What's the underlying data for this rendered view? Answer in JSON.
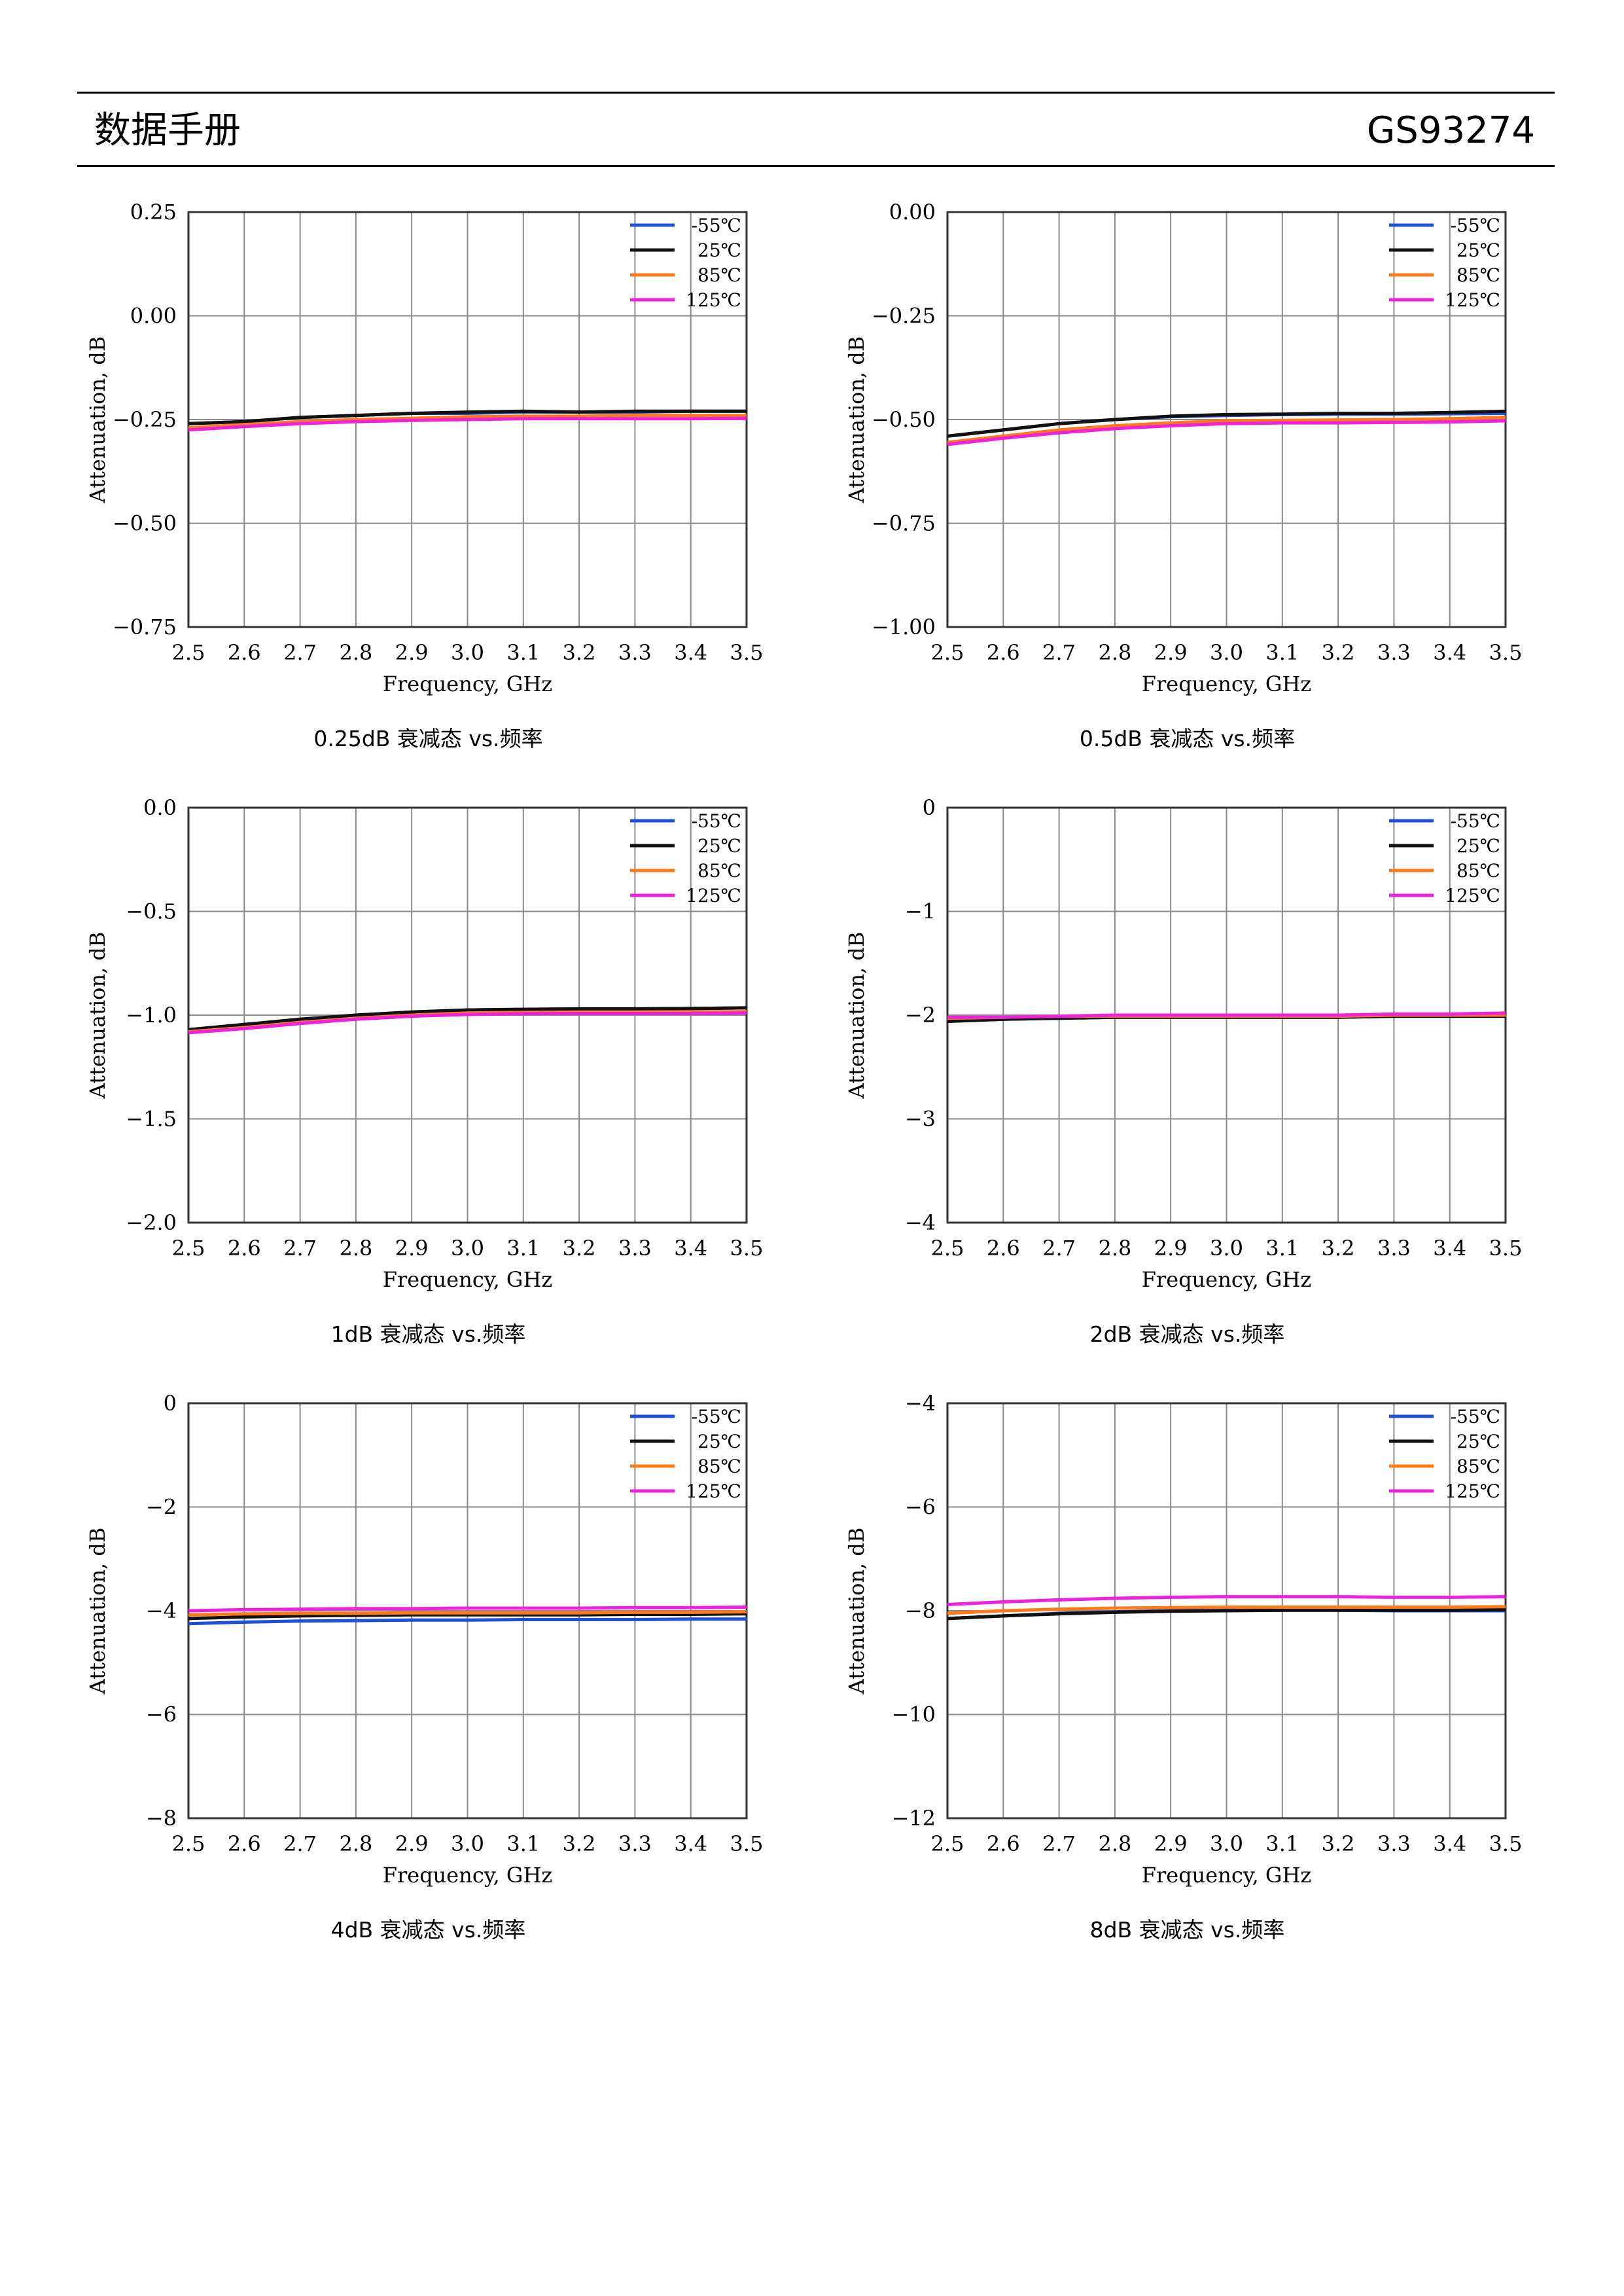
{
  "header": {
    "title": "数据手册",
    "part_number": "GS93274"
  },
  "colors": {
    "-55℃": "#1f4fd6",
    "25℃": "#111111",
    "85℃": "#ff7a1a",
    "125℃": "#ee22dd"
  },
  "chart_data": [
    {
      "type": "line",
      "caption": "0.25dB 衰减态 vs.频率",
      "xlabel": "Frequency, GHz",
      "ylabel": "Attenuation, dB",
      "xlim": [
        2.5,
        3.5
      ],
      "ylim": [
        -0.75,
        0.25
      ],
      "yticks": [
        "0.25",
        "0.00",
        "−0.25",
        "−0.50",
        "−0.75"
      ],
      "ytick_values": [
        0.25,
        0.0,
        -0.25,
        -0.5,
        -0.75
      ],
      "xticks": [
        "2.5",
        "2.6",
        "2.7",
        "2.8",
        "2.9",
        "3.0",
        "3.1",
        "3.2",
        "3.3",
        "3.4",
        "3.5"
      ],
      "legend": "top-right",
      "x": [
        2.5,
        2.6,
        2.7,
        2.8,
        2.9,
        3.0,
        3.1,
        3.2,
        3.3,
        3.4,
        3.5
      ],
      "series": [
        {
          "name": "-55℃",
          "values": [
            -0.26,
            -0.255,
            -0.245,
            -0.24,
            -0.235,
            -0.235,
            -0.232,
            -0.232,
            -0.232,
            -0.23,
            -0.23
          ]
        },
        {
          "name": "25℃",
          "values": [
            -0.26,
            -0.255,
            -0.245,
            -0.24,
            -0.235,
            -0.232,
            -0.23,
            -0.232,
            -0.23,
            -0.23,
            -0.23
          ]
        },
        {
          "name": "85℃",
          "values": [
            -0.27,
            -0.262,
            -0.255,
            -0.25,
            -0.247,
            -0.243,
            -0.242,
            -0.242,
            -0.24,
            -0.24,
            -0.24
          ]
        },
        {
          "name": "125℃",
          "values": [
            -0.275,
            -0.267,
            -0.26,
            -0.255,
            -0.252,
            -0.25,
            -0.248,
            -0.248,
            -0.248,
            -0.248,
            -0.247
          ]
        }
      ]
    },
    {
      "type": "line",
      "caption": "0.5dB 衰减态 vs.频率",
      "xlabel": "Frequency, GHz",
      "ylabel": "Attenuation, dB",
      "xlim": [
        2.5,
        3.5
      ],
      "ylim": [
        -1.0,
        0.0
      ],
      "yticks": [
        "0.00",
        "−0.25",
        "−0.50",
        "−0.75",
        "−1.00"
      ],
      "ytick_values": [
        0.0,
        -0.25,
        -0.5,
        -0.75,
        -1.0
      ],
      "xticks": [
        "2.5",
        "2.6",
        "2.7",
        "2.8",
        "2.9",
        "3.0",
        "3.1",
        "3.2",
        "3.3",
        "3.4",
        "3.5"
      ],
      "legend": "top-right",
      "x": [
        2.5,
        2.6,
        2.7,
        2.8,
        2.9,
        3.0,
        3.1,
        3.2,
        3.3,
        3.4,
        3.5
      ],
      "series": [
        {
          "name": "-55℃",
          "values": [
            -0.54,
            -0.525,
            -0.51,
            -0.5,
            -0.493,
            -0.49,
            -0.488,
            -0.487,
            -0.487,
            -0.486,
            -0.485
          ]
        },
        {
          "name": "25℃",
          "values": [
            -0.54,
            -0.525,
            -0.51,
            -0.5,
            -0.492,
            -0.488,
            -0.487,
            -0.485,
            -0.485,
            -0.483,
            -0.48
          ]
        },
        {
          "name": "85℃",
          "values": [
            -0.555,
            -0.54,
            -0.525,
            -0.515,
            -0.508,
            -0.503,
            -0.502,
            -0.501,
            -0.5,
            -0.498,
            -0.495
          ]
        },
        {
          "name": "125℃",
          "values": [
            -0.56,
            -0.545,
            -0.532,
            -0.522,
            -0.515,
            -0.51,
            -0.508,
            -0.508,
            -0.507,
            -0.506,
            -0.503
          ]
        }
      ]
    },
    {
      "type": "line",
      "caption": "1dB 衰减态 vs.频率",
      "xlabel": "Frequency, GHz",
      "ylabel": "Attenuation, dB",
      "xlim": [
        2.5,
        3.5
      ],
      "ylim": [
        -2.0,
        0.0
      ],
      "yticks": [
        "0.0",
        "−0.5",
        "−1.0",
        "−1.5",
        "−2.0"
      ],
      "ytick_values": [
        0.0,
        -0.5,
        -1.0,
        -1.5,
        -2.0
      ],
      "xticks": [
        "2.5",
        "2.6",
        "2.7",
        "2.8",
        "2.9",
        "3.0",
        "3.1",
        "3.2",
        "3.3",
        "3.4",
        "3.5"
      ],
      "legend": "top-right",
      "x": [
        2.5,
        2.6,
        2.7,
        2.8,
        2.9,
        3.0,
        3.1,
        3.2,
        3.3,
        3.4,
        3.5
      ],
      "series": [
        {
          "name": "-55℃",
          "values": [
            -1.07,
            -1.045,
            -1.02,
            -1.0,
            -0.985,
            -0.975,
            -0.972,
            -0.97,
            -0.97,
            -0.968,
            -0.965
          ]
        },
        {
          "name": "25℃",
          "values": [
            -1.07,
            -1.045,
            -1.02,
            -1.0,
            -0.985,
            -0.975,
            -0.972,
            -0.97,
            -0.97,
            -0.968,
            -0.965
          ]
        },
        {
          "name": "85℃",
          "values": [
            -1.08,
            -1.06,
            -1.035,
            -1.015,
            -1.0,
            -0.99,
            -0.987,
            -0.985,
            -0.985,
            -0.984,
            -0.983
          ]
        },
        {
          "name": "125℃",
          "values": [
            -1.085,
            -1.065,
            -1.04,
            -1.02,
            -1.005,
            -0.997,
            -0.993,
            -0.992,
            -0.992,
            -0.992,
            -0.99
          ]
        }
      ]
    },
    {
      "type": "line",
      "caption": "2dB 衰减态 vs.频率",
      "xlabel": "Frequency, GHz",
      "ylabel": "Attenuation, dB",
      "xlim": [
        2.5,
        3.5
      ],
      "ylim": [
        -4,
        0
      ],
      "yticks": [
        "0",
        "−1",
        "−2",
        "−3",
        "−4"
      ],
      "ytick_values": [
        0,
        -1,
        -2,
        -3,
        -4
      ],
      "xticks": [
        "2.5",
        "2.6",
        "2.7",
        "2.8",
        "2.9",
        "3.0",
        "3.1",
        "3.2",
        "3.3",
        "3.4",
        "3.5"
      ],
      "legend": "top-right",
      "x": [
        2.5,
        2.6,
        2.7,
        2.8,
        2.9,
        3.0,
        3.1,
        3.2,
        3.3,
        3.4,
        3.5
      ],
      "series": [
        {
          "name": "-55℃",
          "values": [
            -2.06,
            -2.04,
            -2.03,
            -2.02,
            -2.02,
            -2.02,
            -2.02,
            -2.02,
            -2.01,
            -2.01,
            -2.01
          ]
        },
        {
          "name": "25℃",
          "values": [
            -2.06,
            -2.04,
            -2.03,
            -2.02,
            -2.02,
            -2.02,
            -2.02,
            -2.02,
            -2.01,
            -2.01,
            -2.01
          ]
        },
        {
          "name": "85℃",
          "values": [
            -2.03,
            -2.02,
            -2.01,
            -2.01,
            -2.01,
            -2.01,
            -2.01,
            -2.01,
            -2.0,
            -2.0,
            -2.0
          ]
        },
        {
          "name": "125℃",
          "values": [
            -2.02,
            -2.02,
            -2.01,
            -2.0,
            -2.0,
            -2.0,
            -2.0,
            -2.0,
            -1.99,
            -1.99,
            -1.98
          ]
        }
      ]
    },
    {
      "type": "line",
      "caption": "4dB 衰减态 vs.频率",
      "xlabel": "Frequency, GHz",
      "ylabel": "Attenuation, dB",
      "xlim": [
        2.5,
        3.5
      ],
      "ylim": [
        -8,
        0
      ],
      "yticks": [
        "0",
        "−2",
        "−4",
        "−6",
        "−8"
      ],
      "ytick_values": [
        0,
        -2,
        -4,
        -6,
        -8
      ],
      "xticks": [
        "2.5",
        "2.6",
        "2.7",
        "2.8",
        "2.9",
        "3.0",
        "3.1",
        "3.2",
        "3.3",
        "3.4",
        "3.5"
      ],
      "legend": "top-right",
      "x": [
        2.5,
        2.6,
        2.7,
        2.8,
        2.9,
        3.0,
        3.1,
        3.2,
        3.3,
        3.4,
        3.5
      ],
      "series": [
        {
          "name": "-55℃",
          "values": [
            -4.25,
            -4.22,
            -4.2,
            -4.19,
            -4.18,
            -4.18,
            -4.17,
            -4.17,
            -4.17,
            -4.16,
            -4.16
          ]
        },
        {
          "name": "25℃",
          "values": [
            -4.15,
            -4.12,
            -4.1,
            -4.09,
            -4.08,
            -4.08,
            -4.08,
            -4.08,
            -4.07,
            -4.07,
            -4.06
          ]
        },
        {
          "name": "85℃",
          "values": [
            -4.08,
            -4.06,
            -4.05,
            -4.05,
            -4.04,
            -4.04,
            -4.04,
            -4.04,
            -4.03,
            -4.03,
            -4.02
          ]
        },
        {
          "name": "125℃",
          "values": [
            -4.0,
            -3.98,
            -3.97,
            -3.96,
            -3.96,
            -3.95,
            -3.95,
            -3.95,
            -3.94,
            -3.94,
            -3.93
          ]
        }
      ]
    },
    {
      "type": "line",
      "caption": "8dB 衰减态 vs.频率",
      "xlabel": "Frequency, GHz",
      "ylabel": "Attenuation, dB",
      "xlim": [
        2.5,
        3.5
      ],
      "ylim": [
        -12,
        -4
      ],
      "yticks": [
        "−4",
        "−6",
        "−8",
        "−10",
        "−12"
      ],
      "ytick_values": [
        -4,
        -6,
        -8,
        -10,
        -12
      ],
      "xticks": [
        "2.5",
        "2.6",
        "2.7",
        "2.8",
        "2.9",
        "3.0",
        "3.1",
        "3.2",
        "3.3",
        "3.4",
        "3.5"
      ],
      "legend": "top-right",
      "x": [
        2.5,
        2.6,
        2.7,
        2.8,
        2.9,
        3.0,
        3.1,
        3.2,
        3.3,
        3.4,
        3.5
      ],
      "series": [
        {
          "name": "-55℃",
          "values": [
            -8.15,
            -8.1,
            -8.05,
            -8.02,
            -8.0,
            -7.99,
            -7.99,
            -7.99,
            -8.0,
            -8.0,
            -8.0
          ]
        },
        {
          "name": "25℃",
          "values": [
            -8.15,
            -8.1,
            -8.06,
            -8.03,
            -8.01,
            -8.0,
            -7.99,
            -7.99,
            -7.99,
            -7.99,
            -7.98
          ]
        },
        {
          "name": "85℃",
          "values": [
            -8.05,
            -8.0,
            -7.97,
            -7.95,
            -7.94,
            -7.93,
            -7.93,
            -7.93,
            -7.93,
            -7.93,
            -7.92
          ]
        },
        {
          "name": "125℃",
          "values": [
            -7.88,
            -7.83,
            -7.79,
            -7.76,
            -7.74,
            -7.73,
            -7.73,
            -7.73,
            -7.74,
            -7.74,
            -7.73
          ]
        }
      ]
    }
  ]
}
